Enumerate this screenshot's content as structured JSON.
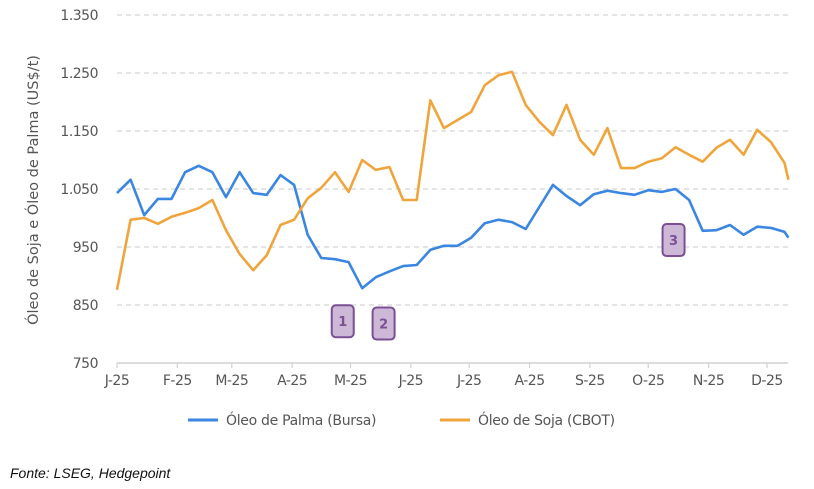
{
  "chart_data": {
    "type": "line",
    "title": "",
    "xlabel": "",
    "ylabel": "Óleo de Soja e Óleo de Palma (US$/t)",
    "ylim": [
      750,
      1350
    ],
    "yticks": [
      750,
      850,
      950,
      1050,
      1150,
      1250,
      1350
    ],
    "ytick_labels": [
      "750",
      "850",
      "950",
      "1.050",
      "1.150",
      "1.250",
      "1.350"
    ],
    "xlim": [
      "2025-01-01",
      "2025-12-12"
    ],
    "xticks": [
      "2025-01-01",
      "2025-02-01",
      "2025-03-01",
      "2025-04-01",
      "2025-05-01",
      "2025-06-01",
      "2025-07-01",
      "2025-08-01",
      "2025-09-01",
      "2025-10-01",
      "2025-11-01",
      "2025-12-01"
    ],
    "xtick_labels": [
      "J-25",
      "F-25",
      "M-25",
      "A-25",
      "M-25",
      "J-25",
      "J-25",
      "A-25",
      "S-25",
      "O-25",
      "N-25",
      "D-25"
    ],
    "grid": "horizontal dashed",
    "legend": "bottom",
    "x": [
      "2025-01-01",
      "2025-01-08",
      "2025-01-15",
      "2025-01-22",
      "2025-01-29",
      "2025-02-05",
      "2025-02-12",
      "2025-02-19",
      "2025-02-26",
      "2025-03-05",
      "2025-03-12",
      "2025-03-19",
      "2025-03-26",
      "2025-04-02",
      "2025-04-09",
      "2025-04-16",
      "2025-04-23",
      "2025-04-30",
      "2025-05-07",
      "2025-05-14",
      "2025-05-21",
      "2025-05-28",
      "2025-06-04",
      "2025-06-11",
      "2025-06-18",
      "2025-06-25",
      "2025-07-02",
      "2025-07-09",
      "2025-07-16",
      "2025-07-23",
      "2025-07-30",
      "2025-08-06",
      "2025-08-13",
      "2025-08-20",
      "2025-08-27",
      "2025-09-03",
      "2025-09-10",
      "2025-09-17",
      "2025-09-24",
      "2025-10-01",
      "2025-10-08",
      "2025-10-15",
      "2025-10-22",
      "2025-10-29",
      "2025-11-05",
      "2025-11-12",
      "2025-11-19",
      "2025-11-26",
      "2025-12-03",
      "2025-12-10",
      "2025-12-12"
    ],
    "series": [
      {
        "name": "Óleo de Palma (Bursa)",
        "color": "#3a86e0",
        "values": [
          1043,
          1066,
          1005,
          1033,
          1033,
          1079,
          1090,
          1079,
          1036,
          1079,
          1043,
          1040,
          1074,
          1057,
          971,
          931,
          929,
          924,
          879,
          898,
          908,
          917,
          919,
          945,
          952,
          952,
          966,
          991,
          997,
          993,
          981,
          1019,
          1057,
          1038,
          1022,
          1041,
          1047,
          1043,
          1040,
          1048,
          1045,
          1050,
          1031,
          978,
          979,
          988,
          971,
          985,
          983,
          976,
          966
        ]
      },
      {
        "name": "Óleo de Soja (CBOT)",
        "color": "#f0a53c",
        "values": [
          876,
          997,
          1000,
          990,
          1002,
          1009,
          1017,
          1031,
          979,
          938,
          910,
          936,
          988,
          997,
          1034,
          1052,
          1079,
          1045,
          1100,
          1083,
          1088,
          1031,
          1031,
          1203,
          1155,
          1169,
          1183,
          1229,
          1246,
          1252,
          1195,
          1166,
          1143,
          1195,
          1135,
          1109,
          1155,
          1086,
          1086,
          1097,
          1103,
          1122,
          1109,
          1097,
          1121,
          1135,
          1109,
          1152,
          1131,
          1095,
          1066
        ]
      }
    ],
    "annotations": [
      {
        "label": "1",
        "date": "2025-04-27",
        "value": 822
      },
      {
        "label": "2",
        "date": "2025-05-18",
        "value": 818
      },
      {
        "label": "3",
        "date": "2025-10-14",
        "value": 962
      }
    ],
    "annotation_color": "#7b4f94",
    "annotation_fill": "#cdb8d8"
  },
  "source": "Fonte: LSEG, Hedgepoint"
}
